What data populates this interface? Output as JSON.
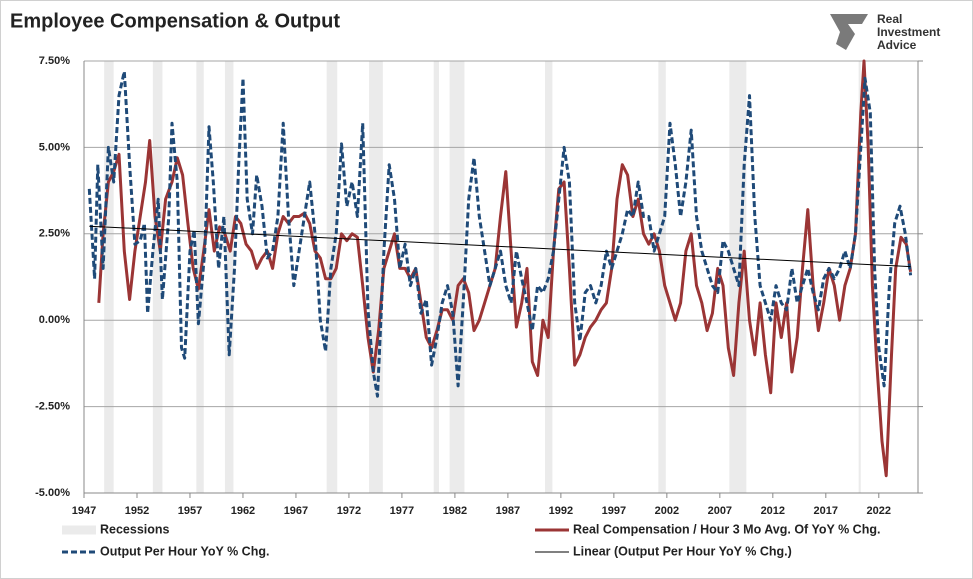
{
  "chart_data": {
    "type": "line",
    "title": "Employee Compensation & Output",
    "logo": [
      "Real",
      "Investment",
      "Advice"
    ],
    "xlim": [
      1947,
      2025.7
    ],
    "xticks": [
      1947,
      1952,
      1957,
      1962,
      1967,
      1972,
      1977,
      1982,
      1987,
      1992,
      1997,
      2002,
      2007,
      2012,
      2017,
      2022
    ],
    "ylim": [
      -5,
      7.5
    ],
    "yticks": [
      {
        "value": -5,
        "label": "-5.00%"
      },
      {
        "value": -2.5,
        "label": "-2.50%"
      },
      {
        "value": 0,
        "label": "0.00%"
      },
      {
        "value": 2.5,
        "label": "2.50%"
      },
      {
        "value": 5,
        "label": "5.00%"
      },
      {
        "value": 7.5,
        "label": "7.50%"
      }
    ],
    "grid": true,
    "recessions": {
      "name": "Recessions",
      "color": "#ebebeb",
      "ranges": [
        [
          1948.9,
          1949.8
        ],
        [
          1953.5,
          1954.4
        ],
        [
          1957.6,
          1958.3
        ],
        [
          1960.3,
          1961.1
        ],
        [
          1969.9,
          1970.9
        ],
        [
          1973.9,
          1975.2
        ],
        [
          1980.0,
          1980.5
        ],
        [
          1981.5,
          1982.9
        ],
        [
          1990.5,
          1991.2
        ],
        [
          2001.2,
          2001.9
        ],
        [
          2007.9,
          2009.5
        ],
        [
          2020.1,
          2020.3
        ]
      ]
    },
    "series": [
      {
        "name": "Real Compensation / Hour 3 Mo Avg. Of YoY % Chg.",
        "color": "#9b3535",
        "dashed": false,
        "x": [
          1948.4,
          1948.8,
          1949.3,
          1949.8,
          1950.3,
          1950.8,
          1951.3,
          1951.8,
          1952.3,
          1952.8,
          1953.2,
          1953.7,
          1954.2,
          1954.7,
          1955.3,
          1955.8,
          1956.3,
          1956.8,
          1957.3,
          1957.8,
          1958.3,
          1958.8,
          1959.3,
          1959.8,
          1960.3,
          1960.8,
          1961.3,
          1961.8,
          1962.3,
          1962.8,
          1963.3,
          1963.8,
          1964.3,
          1964.8,
          1965.3,
          1965.8,
          1966.3,
          1966.8,
          1967.3,
          1967.8,
          1968.3,
          1968.8,
          1969.3,
          1969.8,
          1970.3,
          1970.8,
          1971.3,
          1971.8,
          1972.3,
          1972.8,
          1973.3,
          1973.8,
          1974.3,
          1974.8,
          1975.3,
          1975.8,
          1976.3,
          1976.8,
          1977.3,
          1977.8,
          1978.3,
          1978.8,
          1979.3,
          1979.8,
          1980.3,
          1980.8,
          1981.3,
          1981.8,
          1982.3,
          1982.8,
          1983.3,
          1983.8,
          1984.3,
          1984.8,
          1985.3,
          1985.8,
          1986.3,
          1986.8,
          1987.3,
          1987.8,
          1988.3,
          1988.8,
          1989.3,
          1989.8,
          1990.3,
          1990.8,
          1991.3,
          1991.8,
          1992.3,
          1992.8,
          1993.3,
          1993.8,
          1994.3,
          1994.8,
          1995.3,
          1995.8,
          1996.3,
          1996.8,
          1997.3,
          1997.8,
          1998.3,
          1998.8,
          1999.3,
          1999.8,
          2000.3,
          2000.8,
          2001.3,
          2001.8,
          2002.3,
          2002.8,
          2003.3,
          2003.8,
          2004.3,
          2004.8,
          2005.3,
          2005.8,
          2006.3,
          2006.8,
          2007.3,
          2007.8,
          2008.3,
          2008.8,
          2009.3,
          2009.8,
          2010.3,
          2010.8,
          2011.3,
          2011.8,
          2012.3,
          2012.8,
          2013.3,
          2013.8,
          2014.3,
          2014.8,
          2015.3,
          2015.8,
          2016.3,
          2016.8,
          2017.3,
          2017.8,
          2018.3,
          2018.8,
          2019.3,
          2019.8,
          2020.3,
          2020.6,
          2021.0,
          2021.4,
          2021.8,
          2022.3,
          2022.7,
          2023.2,
          2023.6,
          2024.1,
          2024.6,
          2025.0
        ],
        "values": [
          0.5,
          2.5,
          4.0,
          4.3,
          4.8,
          2.0,
          0.6,
          2.0,
          3.0,
          4.0,
          5.2,
          3.0,
          2.0,
          3.5,
          4.0,
          4.7,
          4.2,
          2.8,
          1.5,
          0.9,
          2.0,
          3.2,
          2.0,
          2.7,
          2.5,
          2.0,
          3.0,
          2.8,
          2.2,
          2.0,
          1.5,
          1.8,
          2.0,
          1.5,
          2.5,
          3.0,
          2.8,
          3.0,
          3.0,
          3.1,
          2.8,
          2.0,
          1.8,
          1.2,
          1.2,
          1.5,
          2.5,
          2.3,
          2.5,
          2.4,
          1.0,
          -0.5,
          -1.5,
          -0.3,
          1.5,
          2.0,
          2.5,
          1.5,
          1.5,
          1.2,
          1.5,
          0.5,
          -0.5,
          -0.8,
          -0.3,
          0.3,
          0.3,
          0.0,
          1.0,
          1.2,
          0.8,
          -0.3,
          0.0,
          0.5,
          1.0,
          1.5,
          3.0,
          4.3,
          2.0,
          -0.2,
          0.5,
          1.5,
          -1.2,
          -1.6,
          0.0,
          -0.5,
          2.0,
          3.8,
          4.0,
          1.5,
          -1.3,
          -1.0,
          -0.5,
          -0.2,
          0.0,
          0.3,
          0.5,
          1.5,
          3.5,
          4.5,
          4.2,
          3.0,
          3.5,
          2.5,
          2.2,
          2.5,
          2.0,
          1.0,
          0.5,
          0.0,
          0.5,
          2.0,
          2.5,
          1.0,
          0.5,
          -0.3,
          0.2,
          1.5,
          1.0,
          -0.8,
          -1.6,
          0.5,
          2.0,
          0.0,
          -1.0,
          0.5,
          -1.0,
          -2.1,
          0.5,
          -0.5,
          0.5,
          -1.5,
          -0.5,
          1.5,
          3.2,
          1.0,
          -0.3,
          0.5,
          1.5,
          1.0,
          0.0,
          1.0,
          1.5,
          2.5,
          6.0,
          7.5,
          5.0,
          1.0,
          -1.2,
          -3.5,
          -4.5,
          -1.0,
          1.5,
          2.4,
          2.2,
          1.4
        ]
      },
      {
        "name": "Output Per Hour YoY % Chg.",
        "color": "#1f4a78",
        "dashed": true,
        "x": [
          1947.5,
          1948.0,
          1948.3,
          1948.8,
          1949.3,
          1949.8,
          1950.3,
          1950.8,
          1951.3,
          1951.8,
          1952.3,
          1952.7,
          1953.0,
          1953.5,
          1954.0,
          1954.4,
          1955.0,
          1955.3,
          1955.8,
          1956.2,
          1956.5,
          1957.0,
          1957.4,
          1957.8,
          1958.4,
          1958.8,
          1959.2,
          1959.7,
          1960.2,
          1960.7,
          1961.2,
          1961.6,
          1962.0,
          1962.4,
          1962.9,
          1963.3,
          1963.8,
          1964.3,
          1964.8,
          1965.3,
          1965.8,
          1966.3,
          1966.8,
          1967.3,
          1967.8,
          1968.3,
          1968.8,
          1969.3,
          1969.8,
          1970.3,
          1970.8,
          1971.3,
          1971.8,
          1972.3,
          1972.8,
          1973.3,
          1973.8,
          1974.3,
          1974.7,
          1975.3,
          1975.8,
          1976.3,
          1976.8,
          1977.3,
          1977.8,
          1978.3,
          1978.8,
          1979.3,
          1979.8,
          1980.3,
          1980.8,
          1981.3,
          1981.8,
          1982.3,
          1982.8,
          1983.3,
          1983.8,
          1984.3,
          1984.8,
          1985.3,
          1985.8,
          1986.3,
          1986.8,
          1987.3,
          1987.8,
          1988.3,
          1988.8,
          1989.3,
          1989.8,
          1990.3,
          1990.8,
          1991.3,
          1991.8,
          1992.3,
          1992.8,
          1993.3,
          1993.8,
          1994.3,
          1994.8,
          1995.3,
          1995.8,
          1996.3,
          1996.8,
          1997.3,
          1997.8,
          1998.3,
          1998.8,
          1999.3,
          1999.8,
          2000.3,
          2000.8,
          2001.3,
          2001.8,
          2002.3,
          2002.8,
          2003.3,
          2003.8,
          2004.3,
          2004.8,
          2005.3,
          2005.8,
          2006.3,
          2006.8,
          2007.3,
          2007.8,
          2008.3,
          2008.8,
          2009.3,
          2009.8,
          2010.3,
          2010.8,
          2011.3,
          2011.8,
          2012.3,
          2012.8,
          2013.3,
          2013.8,
          2014.3,
          2014.8,
          2015.3,
          2015.8,
          2016.3,
          2016.8,
          2017.3,
          2017.8,
          2018.3,
          2018.8,
          2019.3,
          2019.8,
          2020.3,
          2020.7,
          2021.2,
          2021.6,
          2022.0,
          2022.5,
          2023.0,
          2023.5,
          2024.0,
          2024.5,
          2025.0
        ],
        "values": [
          3.8,
          1.2,
          4.5,
          1.5,
          5.0,
          4.0,
          6.5,
          7.2,
          4.5,
          2.2,
          2.3,
          2.8,
          0.2,
          2.0,
          3.5,
          0.6,
          3.0,
          5.7,
          4.0,
          -0.8,
          -1.1,
          2.0,
          2.6,
          -0.1,
          2.0,
          5.6,
          4.0,
          1.5,
          3.0,
          -1.0,
          1.5,
          4.5,
          7.0,
          3.5,
          2.5,
          4.2,
          3.3,
          1.8,
          2.0,
          3.0,
          5.7,
          3.0,
          1.0,
          2.0,
          3.0,
          4.0,
          2.5,
          0.0,
          -0.9,
          1.5,
          2.5,
          5.1,
          3.3,
          4.0,
          3.0,
          5.7,
          0.3,
          -1.5,
          -2.2,
          2.0,
          4.5,
          3.5,
          1.5,
          2.2,
          1.0,
          1.5,
          0.2,
          0.6,
          -1.3,
          -0.5,
          0.5,
          1.0,
          0.2,
          -1.9,
          0.6,
          3.5,
          4.7,
          3.0,
          2.0,
          1.0,
          1.5,
          2.0,
          1.0,
          0.5,
          2.0,
          1.2,
          0.5,
          -0.3,
          1.0,
          0.8,
          1.2,
          2.0,
          3.5,
          5.0,
          4.0,
          0.5,
          -0.6,
          0.8,
          1.0,
          0.5,
          1.0,
          2.0,
          1.5,
          2.0,
          2.5,
          3.2,
          3.0,
          4.0,
          3.0,
          3.0,
          2.0,
          2.5,
          3.0,
          5.7,
          4.5,
          3.0,
          4.0,
          5.5,
          3.0,
          2.0,
          1.5,
          1.0,
          0.8,
          2.3,
          2.0,
          1.5,
          1.0,
          4.5,
          6.5,
          3.0,
          1.0,
          0.5,
          0.0,
          1.0,
          0.5,
          0.3,
          1.5,
          0.5,
          1.0,
          1.5,
          0.8,
          0.3,
          1.2,
          1.5,
          1.2,
          1.5,
          2.0,
          1.5,
          2.5,
          5.0,
          7.0,
          6.0,
          1.5,
          -0.8,
          -1.9,
          1.0,
          2.8,
          3.3,
          2.5,
          1.3
        ]
      },
      {
        "name": "Linear (Output Per Hour YoY % Chg.)",
        "color": "#000000",
        "dashed": false,
        "x": [
          1947.5,
          2025.0
        ],
        "values": [
          2.72,
          1.55
        ]
      }
    ]
  }
}
